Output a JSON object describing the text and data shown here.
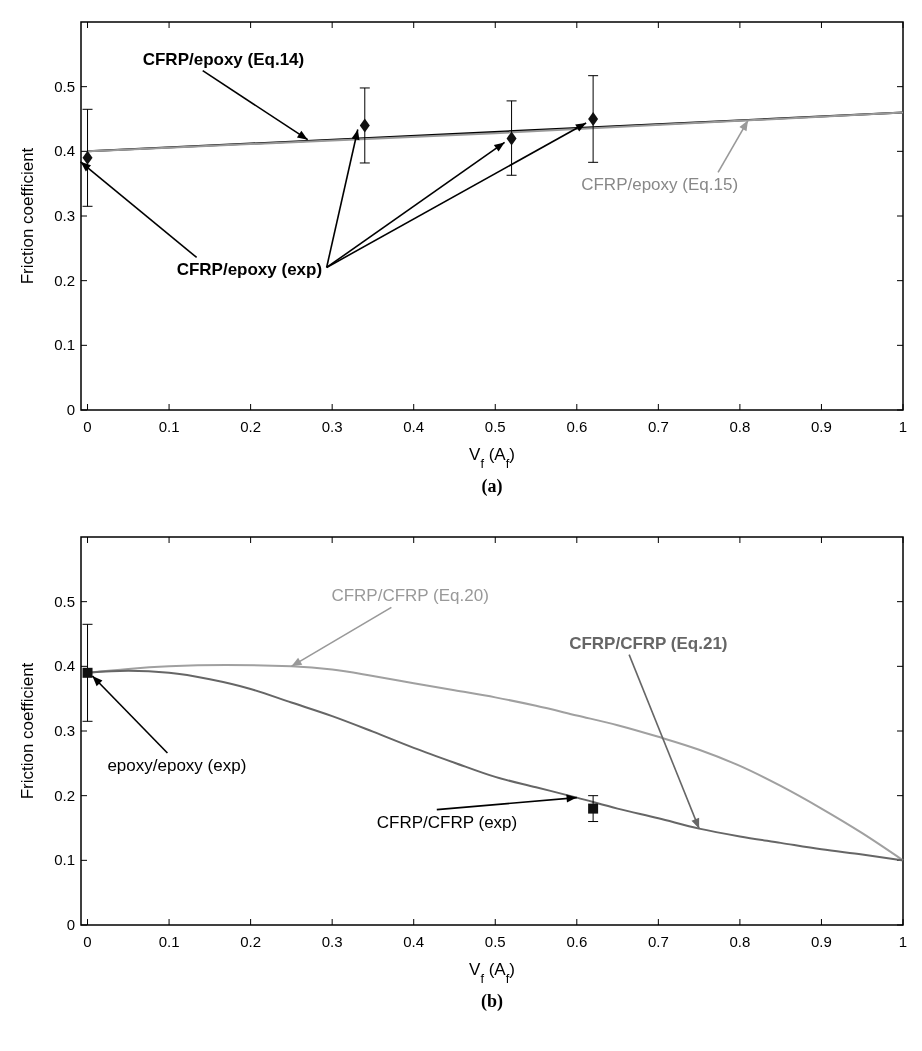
{
  "chart_data": [
    {
      "type": "line",
      "title": "(a)",
      "xlabel": "V$_{f}$ (A$_{f}$)",
      "ylabel": "Friction coefficient",
      "xlim": [
        -0.008,
        1
      ],
      "ylim": [
        0,
        0.6
      ],
      "xticks": [
        0,
        0.1,
        0.2,
        0.3,
        0.4,
        0.5,
        0.6,
        0.7,
        0.8,
        0.9,
        1
      ],
      "yticks": [
        0,
        0.1,
        0.2,
        0.3,
        0.4,
        0.5
      ],
      "grid": false,
      "series": [
        {
          "color": "#000000",
          "marker": "none",
          "x": [
            0,
            1
          ],
          "values": [
            0.4,
            0.46
          ]
        },
        {
          "color": "#999999",
          "marker": "none",
          "x": [
            0,
            0.5,
            1
          ],
          "values": [
            0.4,
            0.428,
            0.46
          ]
        },
        {
          "type": "scatter",
          "color": "#111111",
          "marker": "diamond",
          "x": [
            0,
            0.34,
            0.52,
            0.62
          ],
          "values": [
            0.39,
            0.44,
            0.42,
            0.45
          ],
          "errors": [
            [
              0.315,
              0.465
            ],
            [
              0.382,
              0.498
            ],
            [
              0.363,
              0.478
            ],
            [
              0.383,
              0.517
            ]
          ]
        }
      ],
      "annotations": [
        {
          "text": "CFRP/epoxy (Eq.14)",
          "x": 0.27,
          "y": 0.418
        },
        {
          "text": "CFRP/epoxy (Eq.15)",
          "x": 0.81,
          "y": 0.448
        },
        {
          "text": "CFRP/epoxy (exp)",
          "x": 0.33,
          "y": 0.44
        }
      ]
    },
    {
      "type": "line",
      "title": "(b)",
      "xlabel": "V$_{f}$ (A$_{f}$)",
      "ylabel": "Friction coefficient",
      "xlim": [
        -0.008,
        1
      ],
      "ylim": [
        0,
        0.6
      ],
      "xticks": [
        0,
        0.1,
        0.2,
        0.3,
        0.4,
        0.5,
        0.6,
        0.7,
        0.8,
        0.9,
        1
      ],
      "yticks": [
        0,
        0.1,
        0.2,
        0.3,
        0.4,
        0.5
      ],
      "grid": false,
      "series": [
        {
          "color": "#a0a0a0",
          "marker": "none",
          "x": [
            0,
            0.05,
            0.1,
            0.17,
            0.25,
            0.3,
            0.35,
            0.4,
            0.45,
            0.5,
            0.55,
            0.6,
            0.65,
            0.7,
            0.75,
            0.8,
            0.85,
            0.9,
            0.95,
            1
          ],
          "values": [
            0.39,
            0.396,
            0.4,
            0.402,
            0.4,
            0.395,
            0.385,
            0.374,
            0.363,
            0.352,
            0.339,
            0.324,
            0.309,
            0.291,
            0.271,
            0.246,
            0.215,
            0.18,
            0.142,
            0.1
          ]
        },
        {
          "color": "#666666",
          "marker": "none",
          "x": [
            0,
            0.05,
            0.1,
            0.15,
            0.2,
            0.25,
            0.3,
            0.35,
            0.4,
            0.45,
            0.5,
            0.55,
            0.6,
            0.65,
            0.7,
            0.75,
            0.8,
            0.85,
            0.9,
            0.95,
            1
          ],
          "values": [
            0.39,
            0.393,
            0.39,
            0.38,
            0.365,
            0.344,
            0.323,
            0.299,
            0.274,
            0.251,
            0.229,
            0.213,
            0.197,
            0.18,
            0.165,
            0.149,
            0.137,
            0.127,
            0.117,
            0.109,
            0.1
          ]
        },
        {
          "type": "scatter",
          "color": "#111111",
          "marker": "square",
          "x": [
            0,
            0.62
          ],
          "values": [
            0.39,
            0.18
          ],
          "errors": [
            [
              0.315,
              0.465
            ],
            [
              0.16,
              0.2
            ]
          ]
        }
      ],
      "annotations": [
        {
          "text": "CFRP/CFRP (Eq.20)",
          "x": 0.25,
          "y": 0.4
        },
        {
          "text": "CFRP/CFRP (Eq.21)",
          "x": 0.75,
          "y": 0.149
        },
        {
          "text": "epoxy/epoxy (exp)",
          "x": 0.006,
          "y": 0.385
        },
        {
          "text": "CFRP/CFRP (exp)",
          "x": 0.6,
          "y": 0.197
        }
      ]
    }
  ]
}
